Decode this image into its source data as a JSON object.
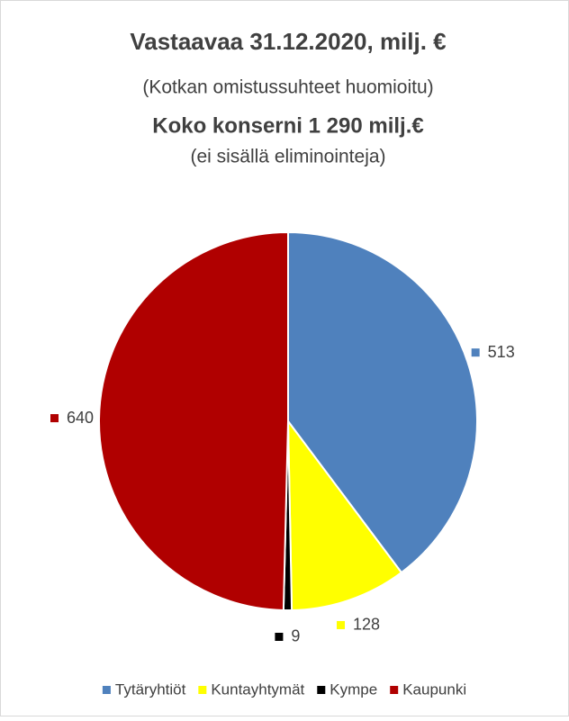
{
  "chart_data": {
    "type": "pie",
    "title": "Vastaavaa 31.12.2020, milj. €",
    "subtitles": [
      "(Kotkan omistussuhteet huomioitu)",
      "Koko konserni 1 290 milj.€",
      "(ei sisällä eliminointeja)"
    ],
    "categories": [
      "Tytäryhtiöt",
      "Kuntayhtymät",
      "Kympe",
      "Kaupunki"
    ],
    "values": [
      513,
      128,
      9,
      640
    ],
    "colors": [
      "#4f81bd",
      "#ffff00",
      "#000000",
      "#b00000"
    ],
    "legend": "bottom"
  }
}
